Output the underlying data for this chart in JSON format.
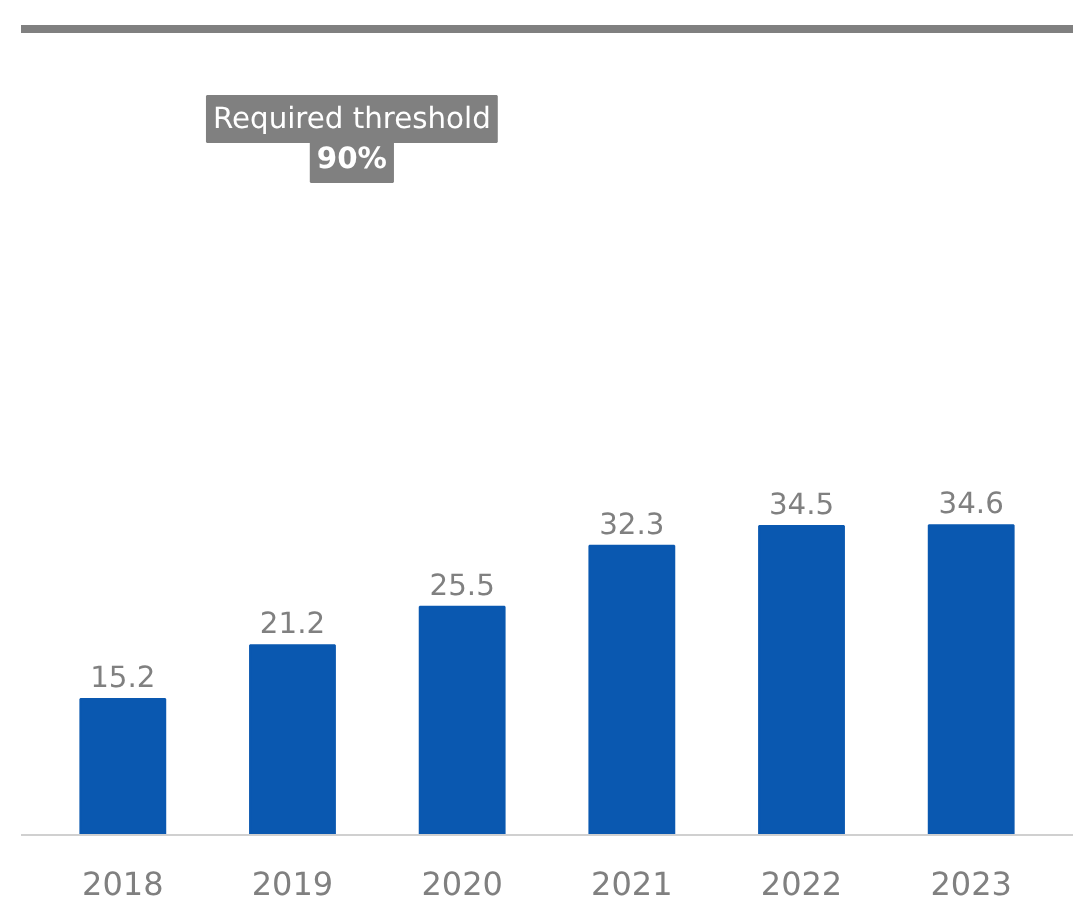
{
  "chart_data": {
    "type": "bar",
    "categories": [
      "2018",
      "2019",
      "2020",
      "2021",
      "2022",
      "2023"
    ],
    "values": [
      15.2,
      21.2,
      25.5,
      32.3,
      34.5,
      34.6
    ],
    "color": "#0a58b0",
    "data_labels": true,
    "grid": false,
    "ref_lines": [
      {
        "axis": "y",
        "value": 90,
        "label": "Required threshold\n90%",
        "color": "#808080",
        "line_style": "solid"
      }
    ]
  }
}
